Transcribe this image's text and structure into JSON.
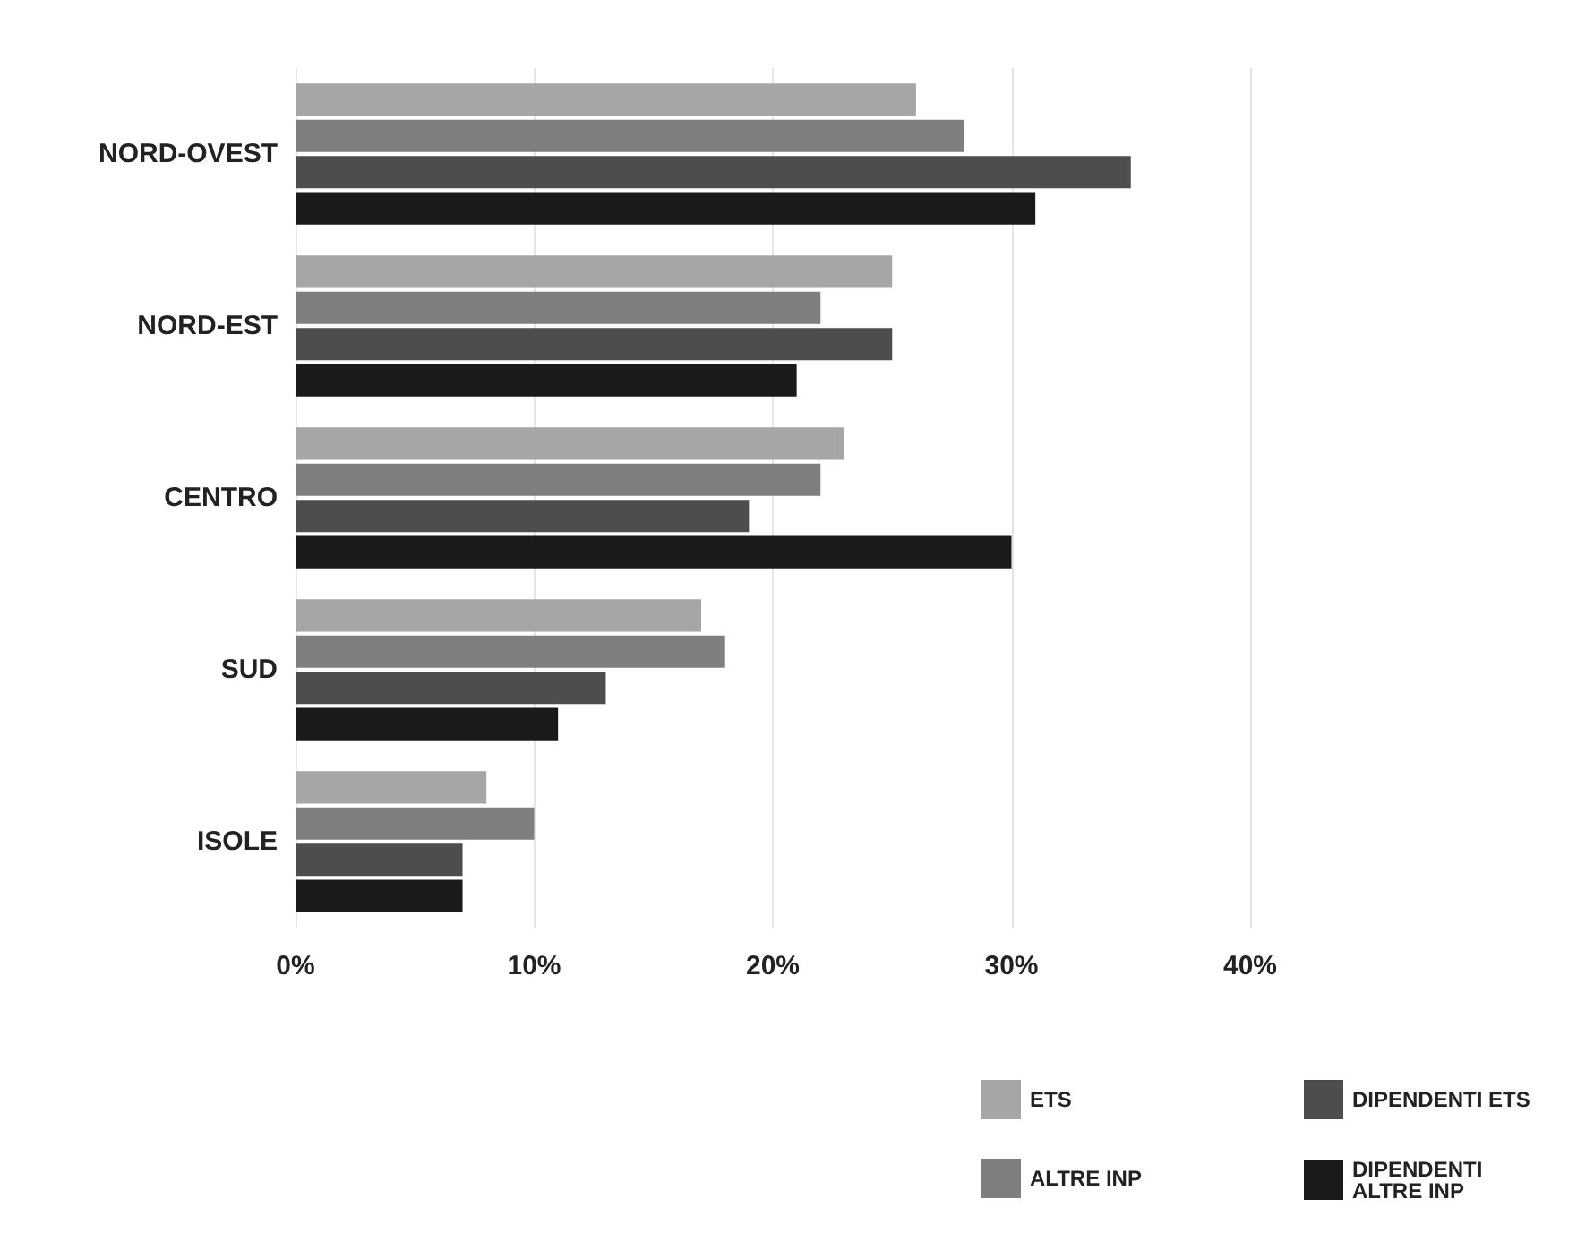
{
  "chart_data": {
    "type": "bar",
    "orientation": "horizontal",
    "categories": [
      "NORD-OVEST",
      "NORD-EST",
      "CENTRO",
      "SUD",
      "ISOLE"
    ],
    "series": [
      {
        "name": "ETS",
        "color": "#a6a6a6",
        "values": [
          26,
          25,
          23,
          17,
          8
        ]
      },
      {
        "name": "ALTRE INP",
        "color": "#7f7f7f",
        "values": [
          28,
          22,
          22,
          18,
          10
        ]
      },
      {
        "name": "DIPENDENTI ETS",
        "color": "#4d4d4d",
        "values": [
          35,
          25,
          19,
          13,
          7
        ]
      },
      {
        "name": "DIPENDENTI ALTRE INP",
        "color": "#1a1a1a",
        "values": [
          31,
          21,
          30,
          11,
          7
        ]
      }
    ],
    "xlim": [
      0,
      40
    ],
    "xticks": [
      {
        "value": 0,
        "label": "0%"
      },
      {
        "value": 10,
        "label": "10%"
      },
      {
        "value": 20,
        "label": "20%"
      },
      {
        "value": 30,
        "label": "30%"
      },
      {
        "value": 40,
        "label": "40%"
      }
    ],
    "grid": "x",
    "legend": "bottom right"
  }
}
